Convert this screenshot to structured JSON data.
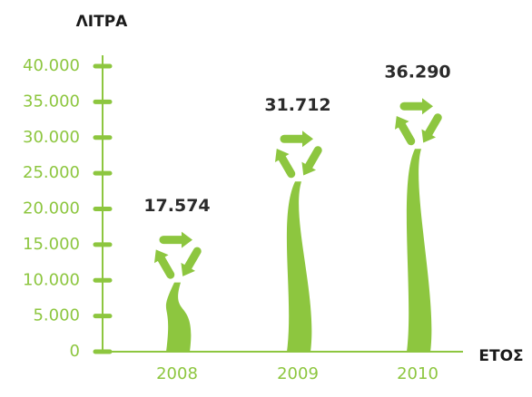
{
  "chart_data": {
    "type": "bar",
    "y_label": "ΛΙΤΡΑ",
    "x_label": "ΕΤΟΣ",
    "categories": [
      "2008",
      "2009",
      "2010"
    ],
    "values": [
      17574,
      31712,
      36290
    ],
    "value_labels": [
      "17.574",
      "31.712",
      "36.290"
    ],
    "color": "#8dc63f",
    "ylim": [
      0,
      40000
    ],
    "yticks": [
      0,
      {
        "value": 5000,
        "label": "5.000"
      },
      {
        "value": 10000,
        "label": "10.000"
      },
      {
        "value": 15000,
        "label": "15.000"
      },
      {
        "value": 20000,
        "label": "20.000"
      },
      {
        "value": 25000,
        "label": "25.000"
      },
      {
        "value": 30000,
        "label": "30.000"
      },
      {
        "value": 35000,
        "label": "35.000"
      },
      {
        "value": 40000,
        "label": "40.000"
      }
    ]
  }
}
